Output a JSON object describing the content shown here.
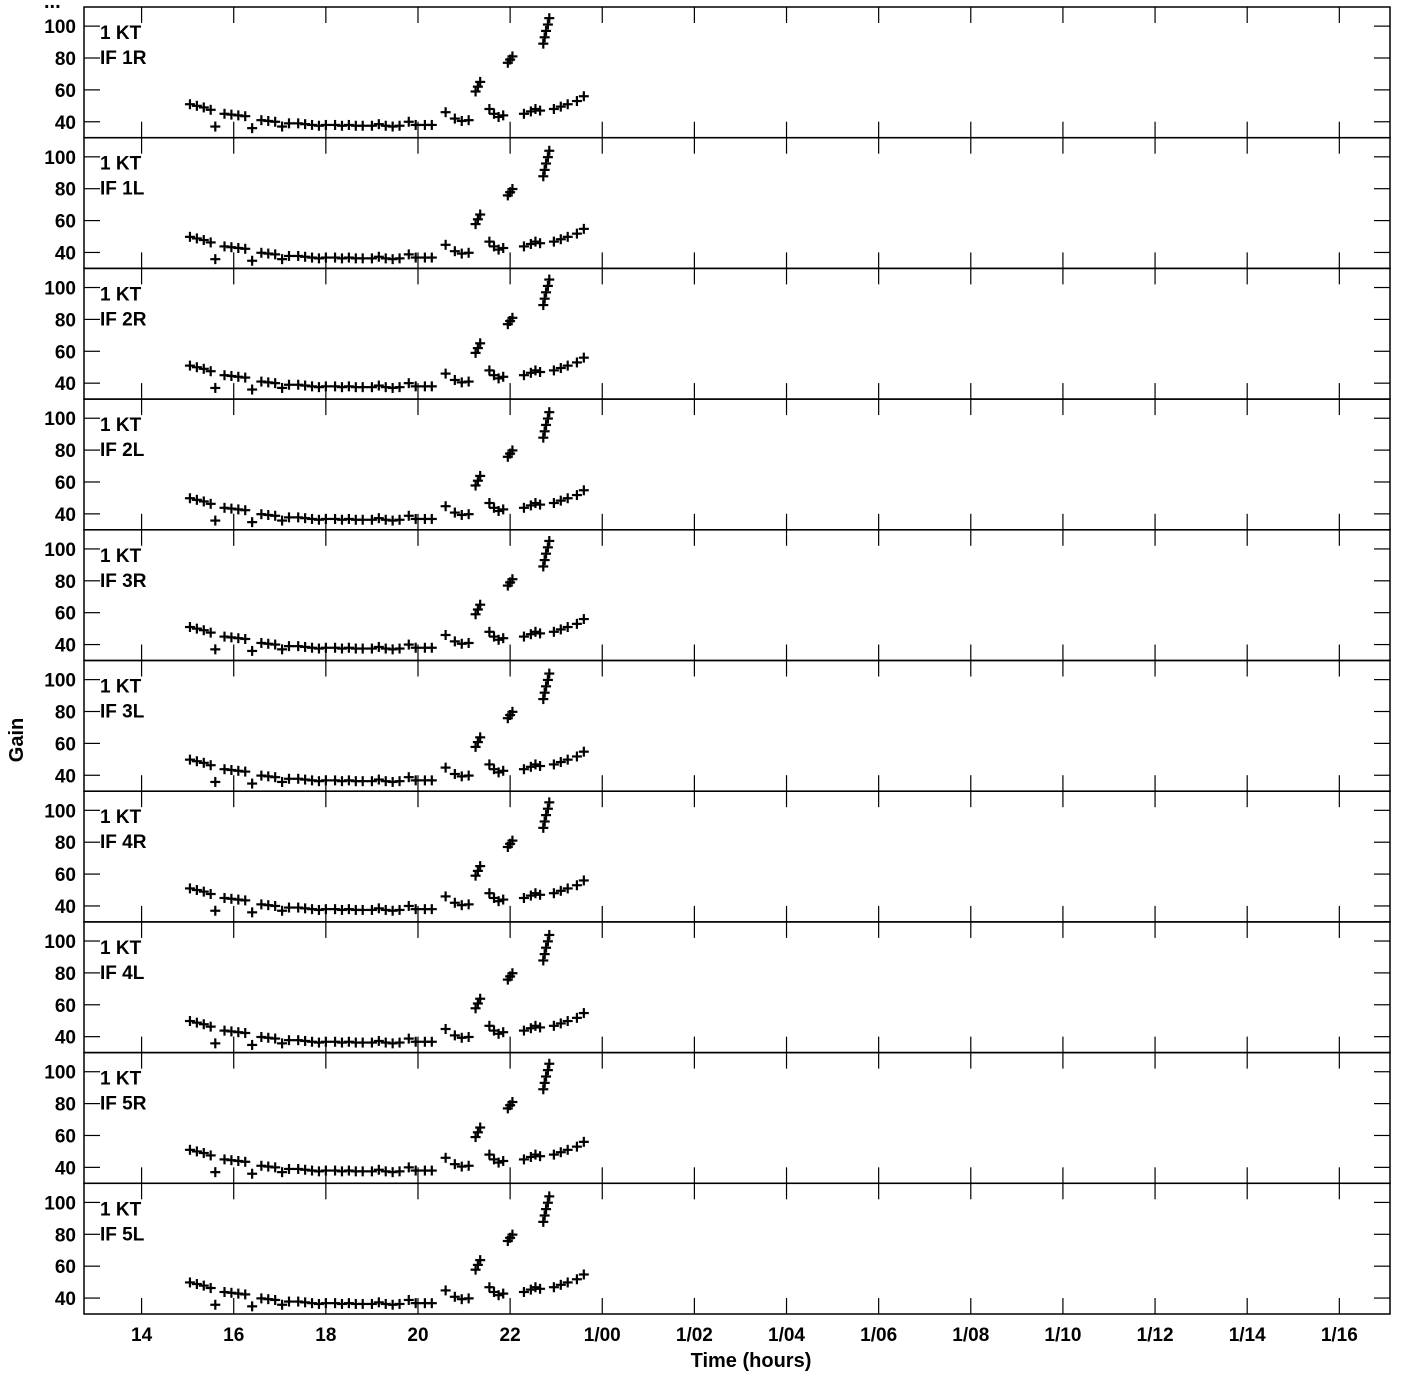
{
  "chart_data": {
    "type": "scatter",
    "title_fragment": "...",
    "xlabel": "Time (hours)",
    "ylabel": "Gain",
    "x_unit": "hours",
    "xlim": [
      12.75,
      41.1
    ],
    "ylim": [
      30,
      112
    ],
    "x_tick_labels": [
      {
        "x": 14,
        "label": "14"
      },
      {
        "x": 16,
        "label": "16"
      },
      {
        "x": 18,
        "label": "18"
      },
      {
        "x": 20,
        "label": "20"
      },
      {
        "x": 22,
        "label": "22"
      },
      {
        "x": 24,
        "label": "1/00"
      },
      {
        "x": 26,
        "label": "1/02"
      },
      {
        "x": 28,
        "label": "1/04"
      },
      {
        "x": 30,
        "label": "1/06"
      },
      {
        "x": 32,
        "label": "1/08"
      },
      {
        "x": 34,
        "label": "1/10"
      },
      {
        "x": 36,
        "label": "1/12"
      },
      {
        "x": 38,
        "label": "1/14"
      },
      {
        "x": 40,
        "label": "1/16"
      }
    ],
    "y_ticks": [
      40,
      60,
      80,
      100
    ],
    "marker": "+",
    "grid": false,
    "panels": [
      {
        "line1": "1 KT",
        "line2": "IF 1R",
        "offset": 0
      },
      {
        "line1": "1 KT",
        "line2": "IF 1L",
        "offset": -1.2
      },
      {
        "line1": "1 KT",
        "line2": "IF 2R",
        "offset": 0
      },
      {
        "line1": "1 KT",
        "line2": "IF 2L",
        "offset": -1.2
      },
      {
        "line1": "1 KT",
        "line2": "IF 3R",
        "offset": 0
      },
      {
        "line1": "1 KT",
        "line2": "IF 3L",
        "offset": -1.2
      },
      {
        "line1": "1 KT",
        "line2": "IF 4R",
        "offset": 0
      },
      {
        "line1": "1 KT",
        "line2": "IF 4L",
        "offset": -1.2
      },
      {
        "line1": "1 KT",
        "line2": "IF 5R",
        "offset": 0
      },
      {
        "line1": "1 KT",
        "line2": "IF 5L",
        "offset": -1.2
      }
    ],
    "series_base": [
      [
        15.05,
        51
      ],
      [
        15.2,
        50
      ],
      [
        15.35,
        49
      ],
      [
        15.5,
        47.5
      ],
      [
        15.6,
        37
      ],
      [
        15.8,
        45
      ],
      [
        15.95,
        44.5
      ],
      [
        16.1,
        44
      ],
      [
        16.25,
        43.5
      ],
      [
        16.4,
        36
      ],
      [
        16.6,
        41
      ],
      [
        16.75,
        40.5
      ],
      [
        16.9,
        40
      ],
      [
        17.05,
        37
      ],
      [
        17.2,
        39
      ],
      [
        17.4,
        39
      ],
      [
        17.55,
        38.5
      ],
      [
        17.7,
        38
      ],
      [
        17.85,
        37.5
      ],
      [
        18.0,
        38
      ],
      [
        18.2,
        38
      ],
      [
        18.35,
        37.5
      ],
      [
        18.5,
        38
      ],
      [
        18.65,
        37.5
      ],
      [
        18.8,
        37.5
      ],
      [
        19.0,
        37.5
      ],
      [
        19.15,
        38.5
      ],
      [
        19.3,
        37.5
      ],
      [
        19.45,
        37
      ],
      [
        19.6,
        37.5
      ],
      [
        19.8,
        40
      ],
      [
        19.95,
        38
      ],
      [
        20.15,
        38
      ],
      [
        20.3,
        38
      ],
      [
        20.6,
        46
      ],
      [
        20.8,
        42
      ],
      [
        20.95,
        40.5
      ],
      [
        21.1,
        41
      ],
      [
        21.25,
        59
      ],
      [
        21.3,
        62
      ],
      [
        21.35,
        65
      ],
      [
        21.55,
        48
      ],
      [
        21.65,
        45
      ],
      [
        21.75,
        43
      ],
      [
        21.85,
        44
      ],
      [
        21.95,
        77
      ],
      [
        22.0,
        79
      ],
      [
        22.05,
        81
      ],
      [
        22.3,
        45
      ],
      [
        22.45,
        46.5
      ],
      [
        22.55,
        48
      ],
      [
        22.65,
        47
      ],
      [
        22.72,
        89
      ],
      [
        22.75,
        93
      ],
      [
        22.78,
        97
      ],
      [
        22.82,
        101
      ],
      [
        22.85,
        105
      ],
      [
        22.95,
        48
      ],
      [
        23.1,
        49.5
      ],
      [
        23.25,
        51
      ],
      [
        23.45,
        53
      ],
      [
        23.6,
        56
      ]
    ]
  }
}
